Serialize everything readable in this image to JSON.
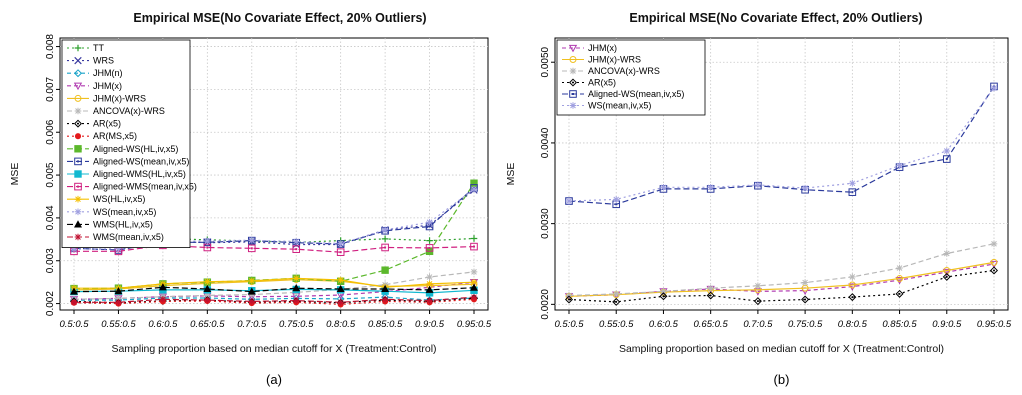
{
  "chart_data": [
    {
      "type": "line",
      "title": "Empirical MSE(No Covariate Effect, 20% Outliers)",
      "xlabel": "Sampling proportion based on median cutoff for X (Treatment:Control)",
      "ylabel": "MSE",
      "panel_label": "(a)",
      "categories": [
        "0.5:0.5",
        "0.55:0.5",
        "0.6:0.5",
        "0.65:0.5",
        "0.7:0.5",
        "0.75:0.5",
        "0.8:0.5",
        "0.85:0.5",
        "0.9:0.5",
        "0.95:0.5"
      ],
      "ylim": [
        0.00185,
        0.0082
      ],
      "yticks": [
        "0.002",
        "0.003",
        "0.004",
        "0.005",
        "0.006",
        "0.007",
        "0.008"
      ],
      "grid": true,
      "legend_position": "top-left",
      "series": [
        {
          "name": "TT",
          "color": "#2ca02c",
          "dash": "2,3",
          "marker": "plus",
          "values": [
            0.00345,
            0.00347,
            0.00352,
            0.00349,
            0.00346,
            0.00343,
            0.00347,
            0.00351,
            0.00347,
            0.00352
          ]
        },
        {
          "name": "WRS",
          "color": "#3a3aa0",
          "dash": "2,3",
          "marker": "x",
          "values": [
            0.00328,
            0.00327,
            0.00346,
            0.00342,
            0.00344,
            0.00338,
            0.00338,
            0.00372,
            0.00383,
            0.00465
          ]
        },
        {
          "name": "JHM(n)",
          "color": "#17a2c8",
          "dash": "4,3",
          "marker": "diamond",
          "values": [
            0.00208,
            0.00208,
            0.00213,
            0.00213,
            0.0021,
            0.00212,
            0.00211,
            0.00215,
            0.00208,
            0.00213
          ]
        },
        {
          "name": "JHM(x)",
          "color": "#b03ab0",
          "dash": "4,3",
          "marker": "triangle-down",
          "values": [
            0.0021,
            0.00212,
            0.00216,
            0.00218,
            0.00216,
            0.00217,
            0.0022,
            0.00228,
            0.00238,
            0.0025
          ]
        },
        {
          "name": "JHM(x)-WRS",
          "color": "#f0c020",
          "dash": "",
          "marker": "circle",
          "values": [
            0.00232,
            0.00234,
            0.00242,
            0.00247,
            0.00251,
            0.00256,
            0.00252,
            0.0024,
            0.00242,
            0.00245
          ]
        },
        {
          "name": "ANCOVA(x)-WRS",
          "color": "#b8b8b8",
          "dash": "5,3",
          "marker": "asterisk",
          "values": [
            0.0021,
            0.00212,
            0.00216,
            0.00219,
            0.00221,
            0.00226,
            0.00233,
            0.00244,
            0.00262,
            0.00274
          ]
        },
        {
          "name": "AR(x5)",
          "color": "#000000",
          "dash": "2,3",
          "marker": "diamond-open",
          "values": [
            0.00205,
            0.00202,
            0.00206,
            0.00208,
            0.00203,
            0.00205,
            0.00202,
            0.00208,
            0.00205,
            0.00212
          ]
        },
        {
          "name": "AR(MS,x5)",
          "color": "#e31a1c",
          "dash": "2,3",
          "marker": "circle-fill",
          "values": [
            0.00202,
            0.002,
            0.00205,
            0.00206,
            0.00201,
            0.00203,
            0.00198,
            0.00205,
            0.00203,
            0.0021
          ]
        },
        {
          "name": "Aligned-WS(HL,iv,x5)",
          "color": "#5cb82c",
          "dash": "6,3",
          "marker": "square-fill",
          "values": [
            0.00235,
            0.00236,
            0.00246,
            0.0025,
            0.00254,
            0.00259,
            0.00252,
            0.00278,
            0.00322,
            0.00481
          ]
        },
        {
          "name": "Aligned-WS(mean,iv,x5)",
          "color": "#2b3a9c",
          "dash": "6,3",
          "marker": "square-open",
          "values": [
            0.00329,
            0.00325,
            0.00343,
            0.00343,
            0.00347,
            0.00342,
            0.00339,
            0.0037,
            0.0038,
            0.0047
          ]
        },
        {
          "name": "Aligned-WMS(HL,iv,x5)",
          "color": "#10b8d0",
          "dash": "",
          "marker": "square-fill",
          "values": [
            0.00228,
            0.00229,
            0.00232,
            0.00232,
            0.0023,
            0.00233,
            0.00232,
            0.00229,
            0.00225,
            0.00231
          ]
        },
        {
          "name": "Aligned-WMS(mean,iv,x5)",
          "color": "#d02080",
          "dash": "6,3",
          "marker": "square-open",
          "values": [
            0.00322,
            0.00322,
            0.00336,
            0.00331,
            0.00329,
            0.00327,
            0.0032,
            0.00331,
            0.0033,
            0.00333
          ]
        },
        {
          "name": "WS(HL,iv,x5)",
          "color": "#f5c000",
          "dash": "",
          "marker": "asterisk",
          "values": [
            0.00236,
            0.00236,
            0.00246,
            0.00251,
            0.00253,
            0.00259,
            0.00255,
            0.00238,
            0.00246,
            0.0025
          ]
        },
        {
          "name": "WS(mean,iv,x5)",
          "color": "#a0a0e0",
          "dash": "2,3",
          "marker": "asterisk",
          "values": [
            0.00327,
            0.00328,
            0.00345,
            0.00346,
            0.00348,
            0.00345,
            0.0034,
            0.00372,
            0.0039,
            0.00467
          ]
        },
        {
          "name": "WMS(HL,iv,x5)",
          "color": "#000000",
          "dash": "6,3",
          "marker": "triangle",
          "values": [
            0.00228,
            0.00229,
            0.00238,
            0.00234,
            0.00228,
            0.00236,
            0.00234,
            0.00234,
            0.00232,
            0.00237
          ]
        },
        {
          "name": "WMS(mean,iv,x5)",
          "color": "#c01030",
          "dash": "6,3",
          "marker": "asterisk",
          "values": [
            0.00203,
            0.00203,
            0.0021,
            0.00208,
            0.00205,
            0.00207,
            0.00203,
            0.0021,
            0.00207,
            0.00215
          ]
        }
      ]
    },
    {
      "type": "line",
      "title": "Empirical MSE(No Covariate Effect, 20% Outliers)",
      "xlabel": "Sampling proportion based on median cutoff for X (Treatment:Control)",
      "ylabel": "MSE",
      "panel_label": "(b)",
      "categories": [
        "0.5:0.5",
        "0.55:0.5",
        "0.6:0.5",
        "0.65:0.5",
        "0.7:0.5",
        "0.75:0.5",
        "0.8:0.5",
        "0.85:0.5",
        "0.9:0.5",
        "0.95:0.5"
      ],
      "ylim": [
        0.00193,
        0.0053
      ],
      "yticks": [
        "0.0020",
        "0.0030",
        "0.0040",
        "0.0050"
      ],
      "grid": true,
      "legend_position": "top-left",
      "series": [
        {
          "name": "JHM(x)",
          "color": "#b03ab0",
          "dash": "4,3",
          "marker": "triangle-down",
          "values": [
            0.0021,
            0.00212,
            0.00216,
            0.00219,
            0.00216,
            0.00217,
            0.00222,
            0.0023,
            0.0024,
            0.0025
          ]
        },
        {
          "name": "JHM(x)-WRS",
          "color": "#f0c020",
          "dash": "",
          "marker": "circle",
          "values": [
            0.0021,
            0.00212,
            0.00215,
            0.00217,
            0.00218,
            0.0022,
            0.00224,
            0.00232,
            0.00242,
            0.00252
          ]
        },
        {
          "name": "ANCOVA(x)-WRS",
          "color": "#b8b8b8",
          "dash": "5,3",
          "marker": "asterisk",
          "values": [
            0.00211,
            0.00213,
            0.00216,
            0.0022,
            0.00223,
            0.00227,
            0.00234,
            0.00245,
            0.00263,
            0.00275
          ]
        },
        {
          "name": "AR(x5)",
          "color": "#000000",
          "dash": "2,3",
          "marker": "diamond-open",
          "values": [
            0.00206,
            0.00203,
            0.0021,
            0.00211,
            0.00204,
            0.00206,
            0.00209,
            0.00213,
            0.00234,
            0.00242
          ]
        },
        {
          "name": "Aligned-WS(mean,iv,x5)",
          "color": "#2b3a9c",
          "dash": "6,3",
          "marker": "square-open",
          "values": [
            0.00328,
            0.00324,
            0.00343,
            0.00343,
            0.00347,
            0.00342,
            0.00339,
            0.0037,
            0.0038,
            0.0047
          ]
        },
        {
          "name": "WS(mean,iv,x5)",
          "color": "#a0a0e0",
          "dash": "2,3",
          "marker": "asterisk",
          "values": [
            0.00328,
            0.0033,
            0.00345,
            0.00345,
            0.00348,
            0.00344,
            0.0035,
            0.00372,
            0.0039,
            0.00468
          ]
        }
      ]
    }
  ]
}
